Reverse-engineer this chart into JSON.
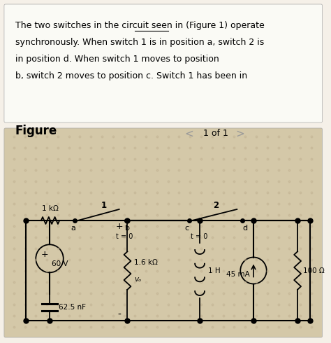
{
  "bg_top_color": "#f5f0e8",
  "bg_circuit_color": "#d4c8a8",
  "text_line1": "The two switches in the circuit seen in (Figure 1) operate",
  "text_line2": "synchronously. When switch 1 is in position a, switch 2 is",
  "text_line3": "in position d. When switch 1 moves to position",
  "text_line4": "b, switch 2 moves to position c. Switch 1 has been in",
  "figure_label": "Figure",
  "page_label": "1 of 1",
  "resistor1": "1 kΩ",
  "resistor2": "1.6 kΩ",
  "resistor3": "100 Ω",
  "capacitor": "62.5 nF",
  "inductor": "1 H",
  "current_source": "45 mA",
  "voltage_source": "60 V",
  "t0": "t = 0",
  "vo_label": "vₒ",
  "node_a": "a",
  "node_b": "b",
  "node_c": "c",
  "node_d": "d",
  "switch1_label": "1",
  "switch2_label": "2",
  "plus_sign": "+",
  "minus_sign": "-"
}
